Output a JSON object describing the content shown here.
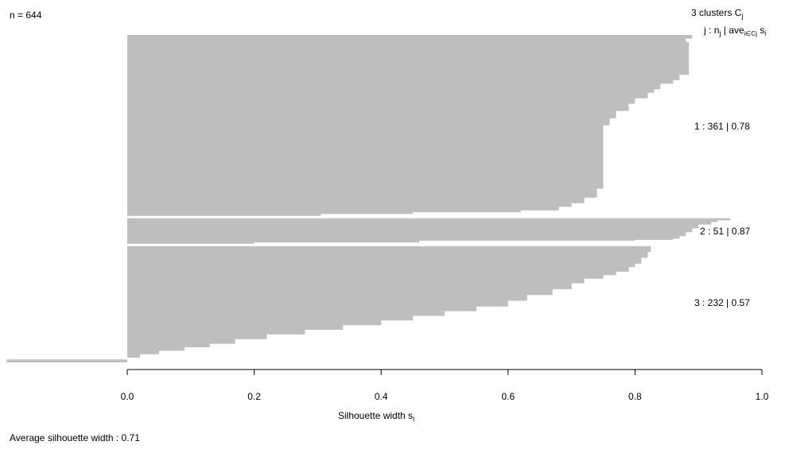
{
  "chart_data": {
    "type": "silhouette",
    "n_label": "n = 644",
    "legend_title_prefix": "3  clusters  C",
    "legend_title_sub": "j",
    "legend_header": {
      "j": "j :",
      "n": "n",
      "n_sub": "j",
      "sep": "|",
      "ave": "ave",
      "ave_sub": "i∈Cj",
      "s": "s",
      "s_sub": "i"
    },
    "xlabel": "Silhouette width s",
    "xlabel_sub": "i",
    "xlim": [
      -0.19,
      1.0
    ],
    "xticks": [
      0.0,
      0.2,
      0.4,
      0.6,
      0.8,
      1.0
    ],
    "xtick_labels": [
      "0.0",
      "0.2",
      "0.4",
      "0.6",
      "0.8",
      "1.0"
    ],
    "bar_color": "#bebebe",
    "average_label": "Average silhouette width :  0.71",
    "average": 0.71,
    "clusters": [
      {
        "j": 1,
        "n": 361,
        "ave": 0.78,
        "label": "1 :   361  |  0.78",
        "profile": [
          [
            0.0,
            0.9
          ],
          [
            0.02,
            0.89
          ],
          [
            0.04,
            0.88
          ],
          [
            0.05,
            0.885
          ],
          [
            0.22,
            0.885
          ],
          [
            0.25,
            0.87
          ],
          [
            0.27,
            0.86
          ],
          [
            0.3,
            0.84
          ],
          [
            0.32,
            0.83
          ],
          [
            0.35,
            0.82
          ],
          [
            0.38,
            0.8
          ],
          [
            0.42,
            0.79
          ],
          [
            0.46,
            0.77
          ],
          [
            0.5,
            0.76
          ],
          [
            0.52,
            0.75
          ],
          [
            0.85,
            0.75
          ],
          [
            0.9,
            0.74
          ],
          [
            0.93,
            0.72
          ],
          [
            0.95,
            0.7
          ],
          [
            0.97,
            0.68
          ],
          [
            0.98,
            0.62
          ],
          [
            0.99,
            0.45
          ],
          [
            1.0,
            0.305
          ]
        ]
      },
      {
        "j": 2,
        "n": 51,
        "ave": 0.87,
        "label": "2 :   51  |  0.87",
        "profile": [
          [
            0.0,
            0.96
          ],
          [
            0.08,
            0.95
          ],
          [
            0.15,
            0.93
          ],
          [
            0.25,
            0.92
          ],
          [
            0.4,
            0.9
          ],
          [
            0.55,
            0.89
          ],
          [
            0.7,
            0.88
          ],
          [
            0.8,
            0.87
          ],
          [
            0.85,
            0.86
          ],
          [
            0.88,
            0.8
          ],
          [
            0.9,
            0.46
          ],
          [
            0.95,
            0.46
          ],
          [
            1.0,
            0.2
          ]
        ]
      },
      {
        "j": 3,
        "n": 232,
        "ave": 0.57,
        "label": "3 :   232  |  0.57",
        "profile": [
          [
            0.0,
            0.83
          ],
          [
            0.05,
            0.825
          ],
          [
            0.1,
            0.82
          ],
          [
            0.15,
            0.81
          ],
          [
            0.18,
            0.8
          ],
          [
            0.22,
            0.79
          ],
          [
            0.25,
            0.77
          ],
          [
            0.28,
            0.75
          ],
          [
            0.32,
            0.72
          ],
          [
            0.37,
            0.7
          ],
          [
            0.42,
            0.67
          ],
          [
            0.47,
            0.63
          ],
          [
            0.52,
            0.6
          ],
          [
            0.56,
            0.55
          ],
          [
            0.6,
            0.5
          ],
          [
            0.64,
            0.45
          ],
          [
            0.68,
            0.4
          ],
          [
            0.72,
            0.34
          ],
          [
            0.76,
            0.28
          ],
          [
            0.8,
            0.22
          ],
          [
            0.84,
            0.17
          ],
          [
            0.87,
            0.13
          ],
          [
            0.9,
            0.09
          ],
          [
            0.93,
            0.05
          ],
          [
            0.96,
            0.02
          ],
          [
            0.975,
            0.0
          ],
          [
            0.98,
            -0.19
          ],
          [
            1.0,
            -0.19
          ]
        ]
      }
    ]
  }
}
